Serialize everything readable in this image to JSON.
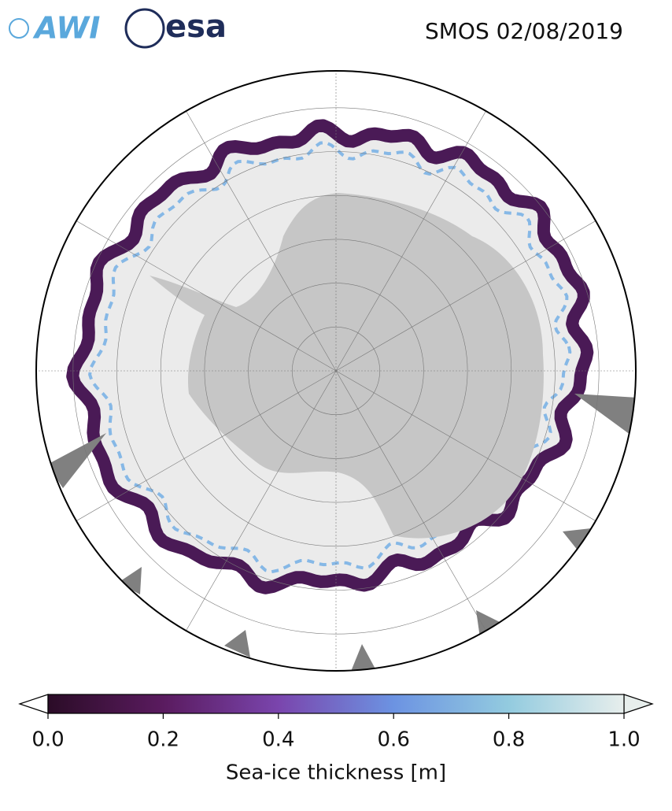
{
  "header": {
    "logos": [
      "AWI",
      "esa"
    ],
    "title": "SMOS 02/08/2019"
  },
  "colorbar": {
    "label": "Sea-ice thickness [m]",
    "lim": [
      0,
      1
    ],
    "ticks": [
      {
        "value": 0,
        "label": "0.0"
      },
      {
        "value": 0.2,
        "label": "0.2"
      },
      {
        "value": 0.4,
        "label": "0.4"
      },
      {
        "value": 0.6,
        "label": "0.6"
      },
      {
        "value": 0.8,
        "label": "0.8"
      },
      {
        "value": 1,
        "label": "1.0"
      }
    ],
    "colors": [
      "#2b0c27",
      "#5a1b5f",
      "#7a45ad",
      "#6c93e2",
      "#93cbdf",
      "#e7eeec"
    ]
  }
}
